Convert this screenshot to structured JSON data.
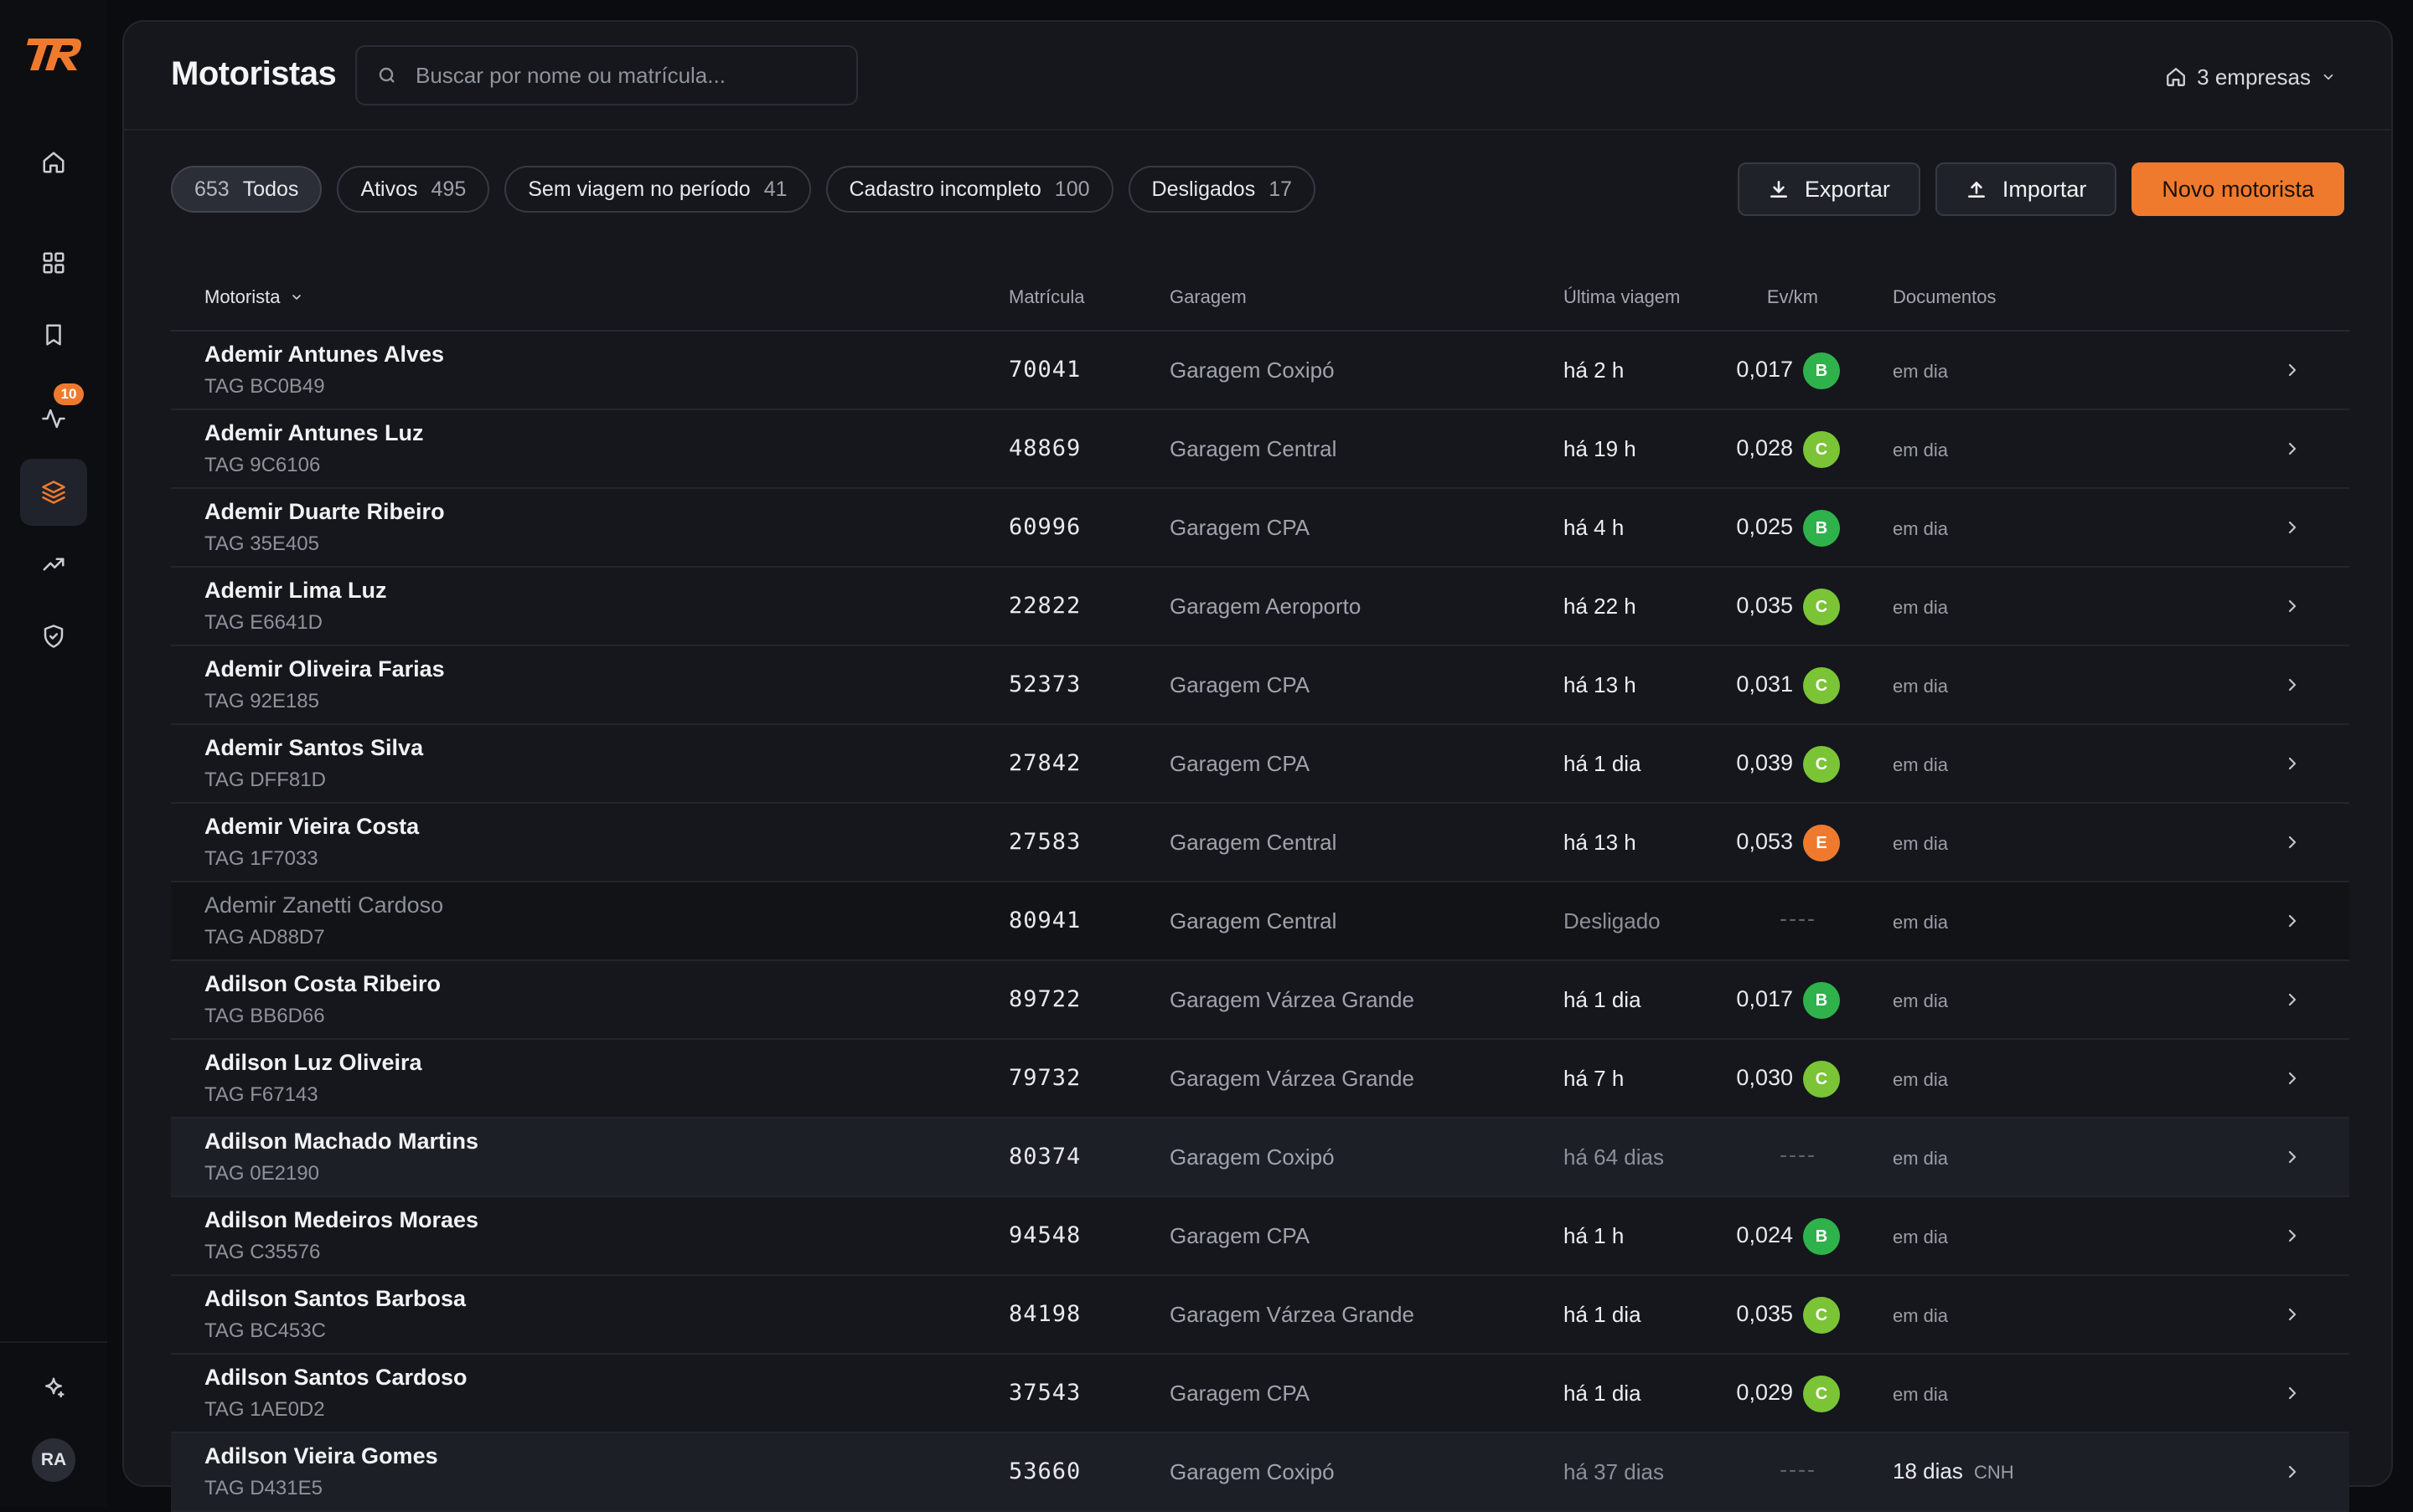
{
  "colors": {
    "accent": "#ef7a2e",
    "grade_b": "#2fb24c",
    "grade_c": "#7ac436",
    "grade_e": "#ef7a2e"
  },
  "sidebar": {
    "logo": "TR",
    "items": [
      {
        "icon": "home-icon"
      },
      {
        "icon": "grid-icon"
      },
      {
        "icon": "bookmark-icon"
      },
      {
        "icon": "activity-icon",
        "badge": "10"
      },
      {
        "icon": "layers-icon",
        "active": true
      },
      {
        "icon": "trending-up-icon"
      },
      {
        "icon": "shield-check-icon"
      }
    ],
    "bottom": [
      {
        "icon": "sparkle-icon"
      }
    ],
    "avatar": "RA"
  },
  "header": {
    "title": "Motoristas",
    "search_placeholder": "Buscar por nome ou matrícula...",
    "companies": "3 empresas"
  },
  "filters": [
    {
      "count": "653",
      "label": "Todos",
      "active": true
    },
    {
      "label": "Ativos",
      "count": "495"
    },
    {
      "label": "Sem viagem no período",
      "count": "41"
    },
    {
      "label": "Cadastro incompleto",
      "count": "100"
    },
    {
      "label": "Desligados",
      "count": "17"
    }
  ],
  "actions": {
    "export": "Exportar",
    "import": "Importar",
    "new": "Novo motorista"
  },
  "table": {
    "columns": {
      "driver": "Motorista",
      "registration": "Matrícula",
      "garage": "Garagem",
      "last_trip": "Última viagem",
      "ev_km": "Ev/km",
      "documents": "Documentos"
    },
    "rows": [
      {
        "name": "Ademir Antunes Alves",
        "tag": "TAG BC0B49",
        "mat": "70041",
        "garage": "Garagem Coxipó",
        "last": "há 2 h",
        "ev": "0,017",
        "grade": "B",
        "doc": "em dia"
      },
      {
        "name": "Ademir Antunes Luz",
        "tag": "TAG 9C6106",
        "mat": "48869",
        "garage": "Garagem Central",
        "last": "há 19 h",
        "ev": "0,028",
        "grade": "C",
        "doc": "em dia"
      },
      {
        "name": "Ademir Duarte Ribeiro",
        "tag": "TAG 35E405",
        "mat": "60996",
        "garage": "Garagem CPA",
        "last": "há 4 h",
        "ev": "0,025",
        "grade": "B",
        "doc": "em dia"
      },
      {
        "name": "Ademir Lima Luz",
        "tag": "TAG E6641D",
        "mat": "22822",
        "garage": "Garagem Aeroporto",
        "last": "há 22 h",
        "ev": "0,035",
        "grade": "C",
        "doc": "em dia"
      },
      {
        "name": "Ademir Oliveira Farias",
        "tag": "TAG 92E185",
        "mat": "52373",
        "garage": "Garagem CPA",
        "last": "há 13 h",
        "ev": "0,031",
        "grade": "C",
        "doc": "em dia"
      },
      {
        "name": "Ademir Santos Silva",
        "tag": "TAG DFF81D",
        "mat": "27842",
        "garage": "Garagem CPA",
        "last": "há 1 dia",
        "ev": "0,039",
        "grade": "C",
        "doc": "em dia"
      },
      {
        "name": "Ademir Vieira Costa",
        "tag": "TAG 1F7033",
        "mat": "27583",
        "garage": "Garagem Central",
        "last": "há 13 h",
        "ev": "0,053",
        "grade": "E",
        "doc": "em dia"
      },
      {
        "name": "Ademir Zanetti Cardoso",
        "tag": "TAG AD88D7",
        "mat": "80941",
        "garage": "Garagem Central",
        "last": "Desligado",
        "ev": "----",
        "grade": "",
        "doc": "em dia",
        "style": "dim"
      },
      {
        "name": "Adilson Costa Ribeiro",
        "tag": "TAG BB6D66",
        "mat": "89722",
        "garage": "Garagem Várzea Grande",
        "last": "há 1 dia",
        "ev": "0,017",
        "grade": "B",
        "doc": "em dia"
      },
      {
        "name": "Adilson Luz Oliveira",
        "tag": "TAG F67143",
        "mat": "79732",
        "garage": "Garagem Várzea Grande",
        "last": "há 7 h",
        "ev": "0,030",
        "grade": "C",
        "doc": "em dia"
      },
      {
        "name": "Adilson Machado Martins",
        "tag": "TAG 0E2190",
        "mat": "80374",
        "garage": "Garagem Coxipó",
        "last": "há 64 dias",
        "ev": "----",
        "grade": "",
        "doc": "em dia",
        "style": "hl"
      },
      {
        "name": "Adilson Medeiros Moraes",
        "tag": "TAG C35576",
        "mat": "94548",
        "garage": "Garagem CPA",
        "last": "há 1 h",
        "ev": "0,024",
        "grade": "B",
        "doc": "em dia"
      },
      {
        "name": "Adilson Santos Barbosa",
        "tag": "TAG BC453C",
        "mat": "84198",
        "garage": "Garagem Várzea Grande",
        "last": "há 1 dia",
        "ev": "0,035",
        "grade": "C",
        "doc": "em dia"
      },
      {
        "name": "Adilson Santos Cardoso",
        "tag": "TAG 1AE0D2",
        "mat": "37543",
        "garage": "Garagem CPA",
        "last": "há 1 dia",
        "ev": "0,029",
        "grade": "C",
        "doc": "em dia"
      },
      {
        "name": "Adilson Vieira Gomes",
        "tag": "TAG D431E5",
        "mat": "53660",
        "garage": "Garagem Coxipó",
        "last": "há 37 dias",
        "ev": "----",
        "grade": "",
        "doc_days": "18 dias",
        "doc_type": "CNH",
        "style": "hl"
      }
    ]
  }
}
